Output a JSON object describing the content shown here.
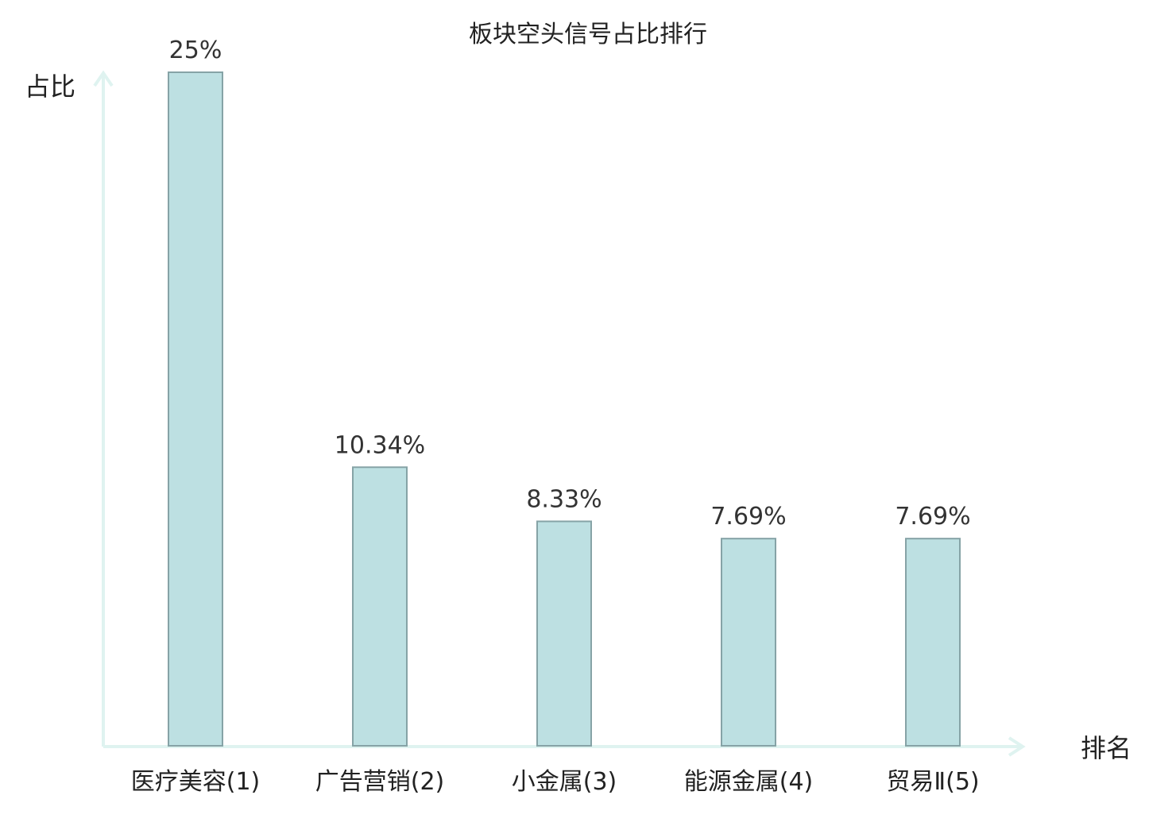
{
  "chart_data": {
    "type": "bar",
    "title": "板块空头信号占比排行",
    "xlabel": "排名",
    "ylabel": "占比",
    "categories": [
      "医疗美容(1)",
      "广告营销(2)",
      "小金属(3)",
      "能源金属(4)",
      "贸易Ⅱ(5)"
    ],
    "values": [
      25,
      10.34,
      8.33,
      7.69,
      7.69
    ],
    "value_labels": [
      "25%",
      "10.34%",
      "8.33%",
      "7.69%",
      "7.69%"
    ],
    "highlight_index": 1,
    "ylim": [
      0,
      25
    ],
    "grid": false,
    "legend": "none"
  },
  "colors": {
    "bar_fill": "#bde0e2",
    "bar_stroke": "#86a3a6",
    "axis": "#dff3f0",
    "highlight_text": "#e8161c",
    "text": "#222222",
    "value_text": "#333333"
  }
}
